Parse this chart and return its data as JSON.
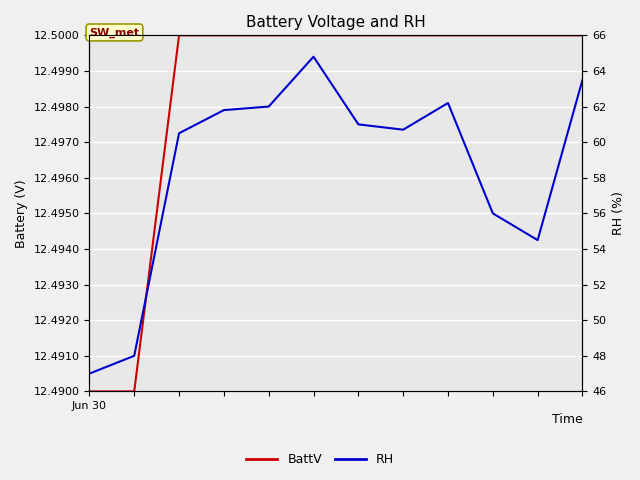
{
  "title": "Battery Voltage and RH",
  "xlabel": "Time",
  "ylabel_left": "Battery (V)",
  "ylabel_right": "RH (%)",
  "annotation_text": "SW_met",
  "batt_x": [
    0,
    1,
    2,
    3,
    4,
    5,
    6,
    7,
    8,
    9,
    10,
    11
  ],
  "batt_y": [
    12.49,
    12.49,
    12.5,
    12.5,
    12.5,
    12.5,
    12.5,
    12.5,
    12.5,
    12.5,
    12.5,
    12.5
  ],
  "rh_x": [
    0,
    1,
    2,
    3,
    4,
    5,
    6,
    7,
    8,
    9,
    10,
    11
  ],
  "rh_y": [
    47.0,
    48.0,
    60.5,
    61.8,
    62.0,
    64.8,
    61.0,
    60.7,
    62.2,
    56.0,
    54.5,
    63.5
  ],
  "batt_color": "#cc0000",
  "rh_color": "#0000cc",
  "ylim_left": [
    12.49,
    12.5
  ],
  "ylim_right": [
    46,
    66
  ],
  "bg_color": "#e8e8e8",
  "face_color": "#f0f0f0",
  "grid_color": "#ffffff",
  "title_fontsize": 11,
  "label_fontsize": 9,
  "tick_fontsize": 8,
  "legend_fontsize": 9,
  "xticklabels": [
    "Jun 30",
    "",
    "",
    "",
    "",
    "",
    "",
    "",
    "",
    "",
    "",
    ""
  ]
}
